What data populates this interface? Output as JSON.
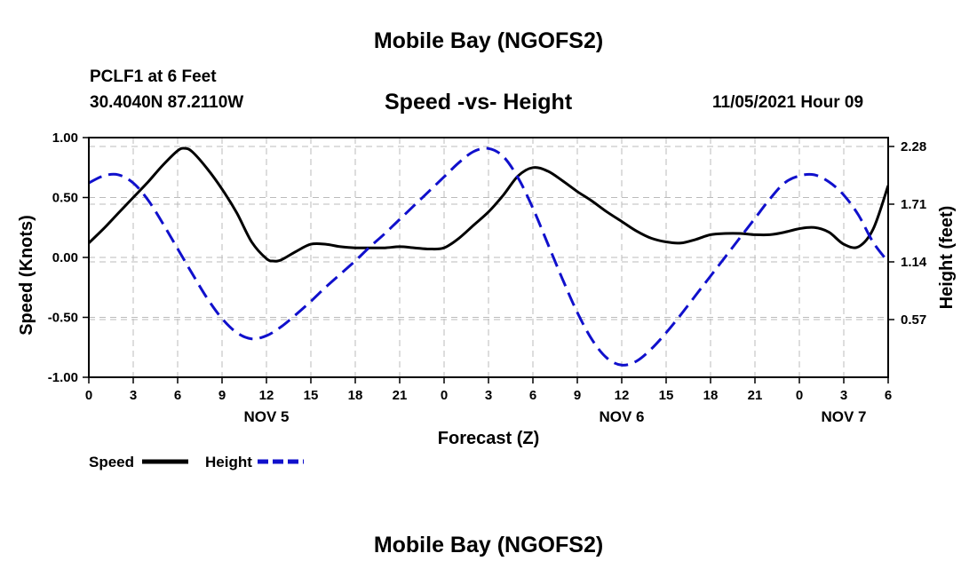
{
  "header": {
    "title": "Mobile Bay (NGOFS2)",
    "station": "PCLF1 at 6 Feet",
    "coordinates": "30.4040N  87.2110W",
    "subtitle": "Speed -vs- Height",
    "datetime": "11/05/2021 Hour 09"
  },
  "footer": {
    "title": "Mobile Bay (NGOFS2)"
  },
  "legend": {
    "speed_label": "Speed",
    "height_label": "Height"
  },
  "colors": {
    "speed": "#000000",
    "height": "#1010cc",
    "grid": "#bbbbbb"
  },
  "chart_data": {
    "type": "line",
    "title": "Speed -vs- Height",
    "xlabel": "Forecast (Z)",
    "ylabel": "Speed (Knots)",
    "y2label": "Height (feet)",
    "xlim": [
      0,
      54
    ],
    "ylim": [
      -1.0,
      1.0
    ],
    "y2lim": [
      0.0,
      2.28
    ],
    "x_ticks": [
      0,
      3,
      6,
      9,
      12,
      15,
      18,
      21,
      24,
      27,
      30,
      33,
      36,
      39,
      42,
      45,
      48,
      51,
      54
    ],
    "x_tick_labels": [
      "0",
      "3",
      "6",
      "9",
      "12",
      "15",
      "18",
      "21",
      "0",
      "3",
      "6",
      "9",
      "12",
      "15",
      "18",
      "21",
      "0",
      "3",
      "6"
    ],
    "date_labels": [
      {
        "x": 12,
        "label": "NOV 5"
      },
      {
        "x": 36,
        "label": "NOV 6"
      },
      {
        "x": 51,
        "label": "NOV 7"
      }
    ],
    "y_ticks": [
      -1.0,
      -0.5,
      0.0,
      0.5,
      1.0
    ],
    "y_tick_labels": [
      "-1.00",
      "-0.50",
      "0.00",
      "0.50",
      "1.00"
    ],
    "y2_ticks": [
      0.57,
      1.14,
      1.71,
      2.28
    ],
    "y2_tick_labels": [
      "0.57",
      "1.14",
      "1.71",
      "2.28"
    ],
    "grid": true,
    "legend_position": "bottom-left",
    "series": [
      {
        "name": "Speed",
        "axis": "left",
        "style": "solid",
        "x": [
          0,
          1,
          2,
          3,
          4,
          5,
          6,
          6.5,
          7,
          8,
          9,
          10,
          11,
          12,
          12.5,
          13,
          14,
          15,
          16,
          17,
          18,
          19,
          20,
          21,
          22,
          23,
          24,
          25,
          26,
          27,
          28,
          29,
          30,
          31,
          32,
          33,
          34,
          35,
          36,
          37,
          38,
          39,
          40,
          41,
          42,
          43,
          44,
          45,
          46,
          47,
          48,
          49,
          50,
          51,
          52,
          53,
          54
        ],
        "y": [
          0.12,
          0.24,
          0.37,
          0.5,
          0.63,
          0.77,
          0.89,
          0.91,
          0.88,
          0.74,
          0.57,
          0.37,
          0.13,
          -0.01,
          -0.03,
          -0.02,
          0.05,
          0.11,
          0.11,
          0.09,
          0.08,
          0.08,
          0.08,
          0.09,
          0.08,
          0.07,
          0.08,
          0.16,
          0.27,
          0.38,
          0.52,
          0.68,
          0.75,
          0.72,
          0.64,
          0.55,
          0.47,
          0.38,
          0.3,
          0.22,
          0.16,
          0.13,
          0.12,
          0.15,
          0.19,
          0.2,
          0.2,
          0.19,
          0.19,
          0.21,
          0.24,
          0.25,
          0.21,
          0.11,
          0.09,
          0.24,
          0.6
        ]
      },
      {
        "name": "Height",
        "axis": "right",
        "style": "dashed",
        "x": [
          0,
          1,
          2,
          3,
          4,
          5,
          6,
          7,
          8,
          9,
          10,
          11,
          12,
          13,
          14,
          15,
          16,
          17,
          18,
          19,
          20,
          21,
          22,
          23,
          24,
          25,
          26,
          27,
          28,
          29,
          30,
          31,
          32,
          33,
          34,
          35,
          36,
          37,
          38,
          39,
          40,
          41,
          42,
          43,
          44,
          45,
          46,
          47,
          48,
          49,
          50,
          51,
          52,
          53,
          54
        ],
        "y": [
          1.92,
          1.99,
          2.0,
          1.92,
          1.75,
          1.52,
          1.27,
          1.02,
          0.78,
          0.58,
          0.44,
          0.38,
          0.41,
          0.5,
          0.62,
          0.75,
          0.89,
          1.02,
          1.15,
          1.29,
          1.42,
          1.56,
          1.7,
          1.84,
          1.98,
          2.12,
          2.23,
          2.26,
          2.18,
          1.97,
          1.67,
          1.32,
          0.97,
          0.64,
          0.37,
          0.19,
          0.12,
          0.16,
          0.28,
          0.44,
          0.62,
          0.81,
          1.0,
          1.19,
          1.38,
          1.57,
          1.76,
          1.92,
          1.99,
          2.0,
          1.93,
          1.8,
          1.6,
          1.33,
          1.14
        ]
      }
    ]
  }
}
